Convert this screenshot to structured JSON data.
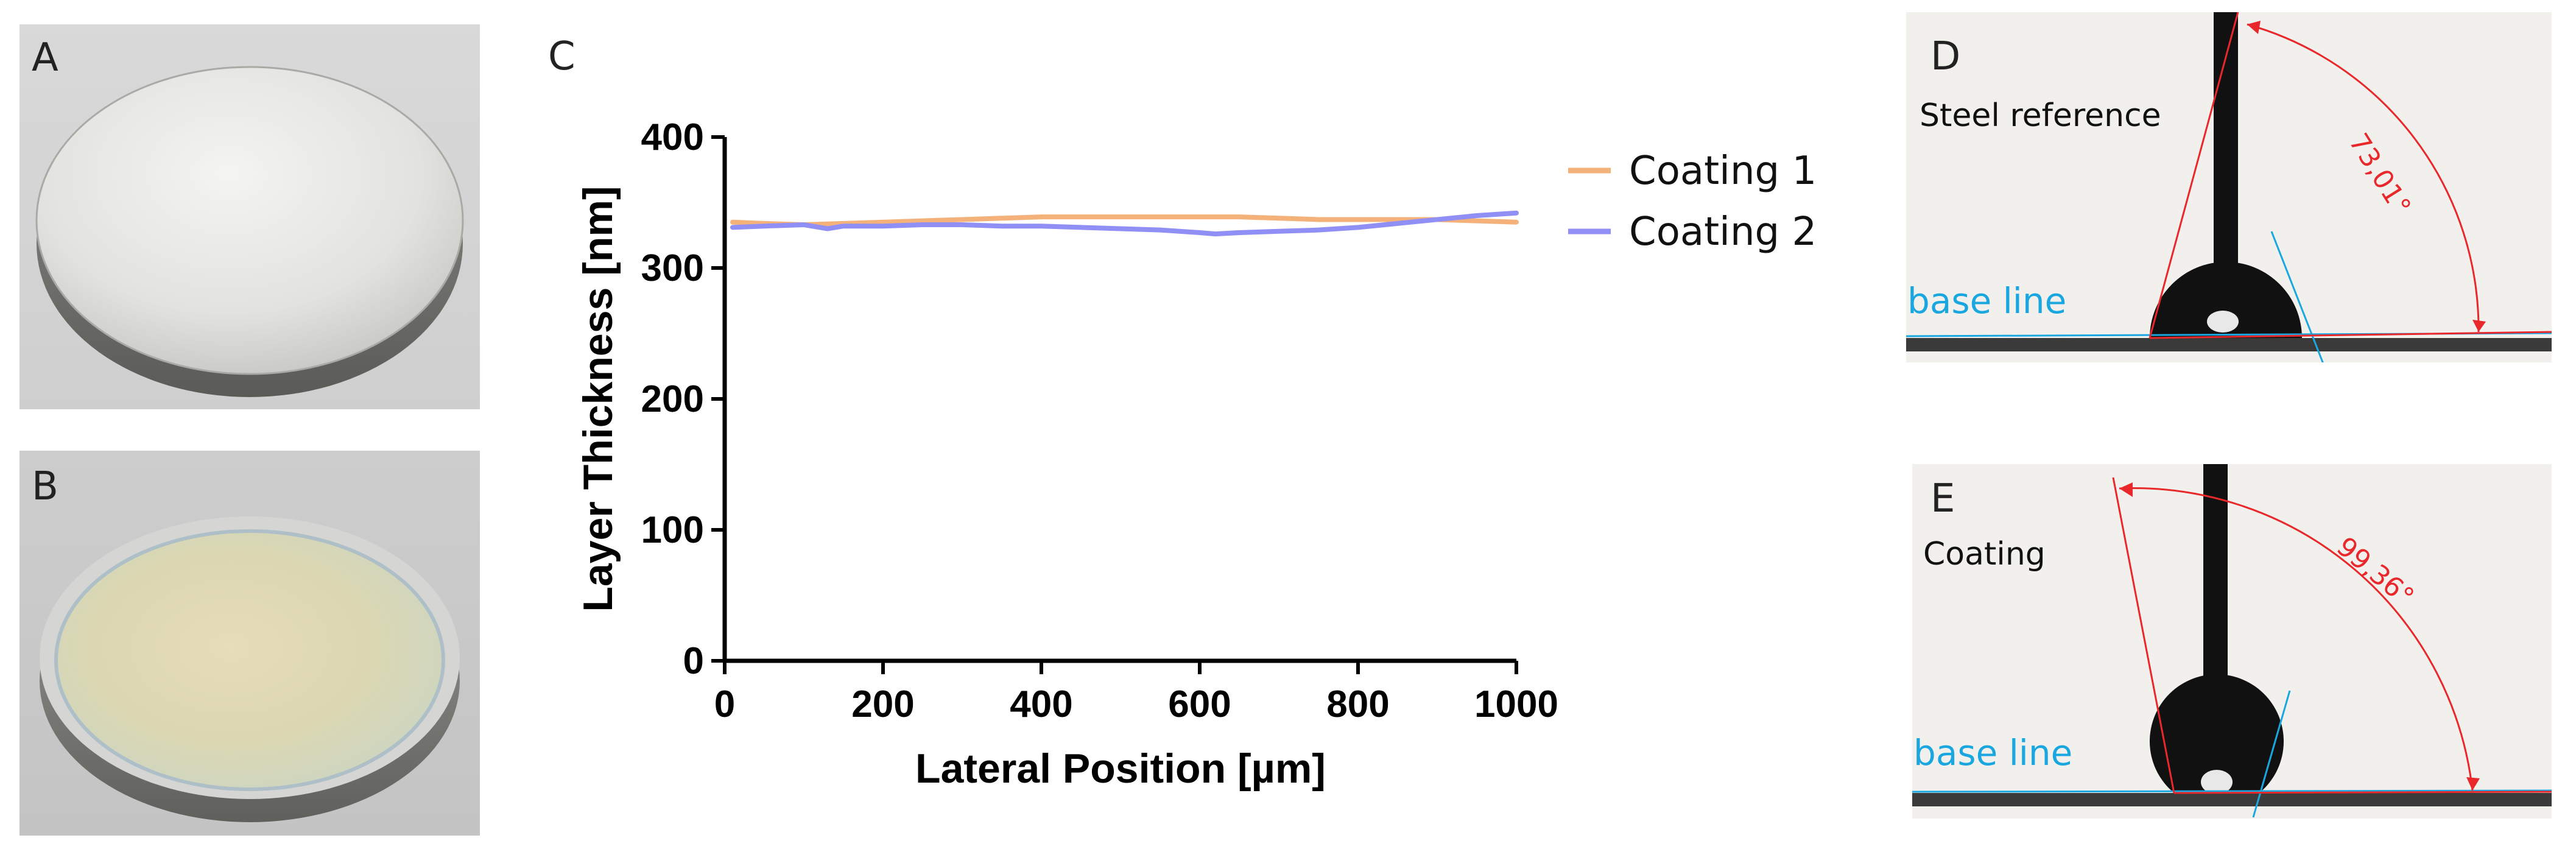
{
  "panels": {
    "a": {
      "letter": "A"
    },
    "b": {
      "letter": "B"
    },
    "c": {
      "letter": "C"
    },
    "d": {
      "letter": "D",
      "label": "Steel reference",
      "baseline_label": "base line",
      "angle": "73,01°"
    },
    "e": {
      "letter": "E",
      "label": "Coating",
      "baseline_label": "base line",
      "angle": "99,36°"
    }
  },
  "colors": {
    "coating1": "#f4b27a",
    "coating2": "#8f8ff5",
    "baseline": "#1aa7e0",
    "angle": "#e8282a"
  },
  "chart_data": {
    "type": "line",
    "xlabel": "Lateral Position [µm]",
    "ylabel": "Layer Thickness [nm]",
    "xlim": [
      0,
      1000
    ],
    "ylim": [
      0,
      400
    ],
    "xticks": [
      "0",
      "200",
      "400",
      "600",
      "800",
      "1000"
    ],
    "yticks": [
      "0",
      "100",
      "200",
      "300",
      "400"
    ],
    "grid": false,
    "legend_position": "top-right",
    "series": [
      {
        "name": "Coating 1",
        "x": [
          10,
          50,
          100,
          150,
          200,
          250,
          300,
          350,
          400,
          450,
          500,
          550,
          600,
          650,
          700,
          750,
          800,
          850,
          900,
          950,
          1000
        ],
        "y": [
          335,
          334,
          333,
          334,
          335,
          336,
          337,
          338,
          339,
          339,
          339,
          339,
          339,
          339,
          338,
          337,
          337,
          337,
          337,
          336,
          335
        ]
      },
      {
        "name": "Coating 2",
        "x": [
          10,
          50,
          100,
          130,
          150,
          200,
          250,
          300,
          350,
          400,
          450,
          500,
          550,
          600,
          620,
          650,
          700,
          750,
          800,
          850,
          900,
          950,
          1000
        ],
        "y": [
          331,
          332,
          333,
          330,
          332,
          332,
          333,
          333,
          332,
          332,
          331,
          330,
          329,
          327,
          326,
          327,
          328,
          329,
          331,
          334,
          337,
          340,
          342
        ]
      }
    ]
  }
}
